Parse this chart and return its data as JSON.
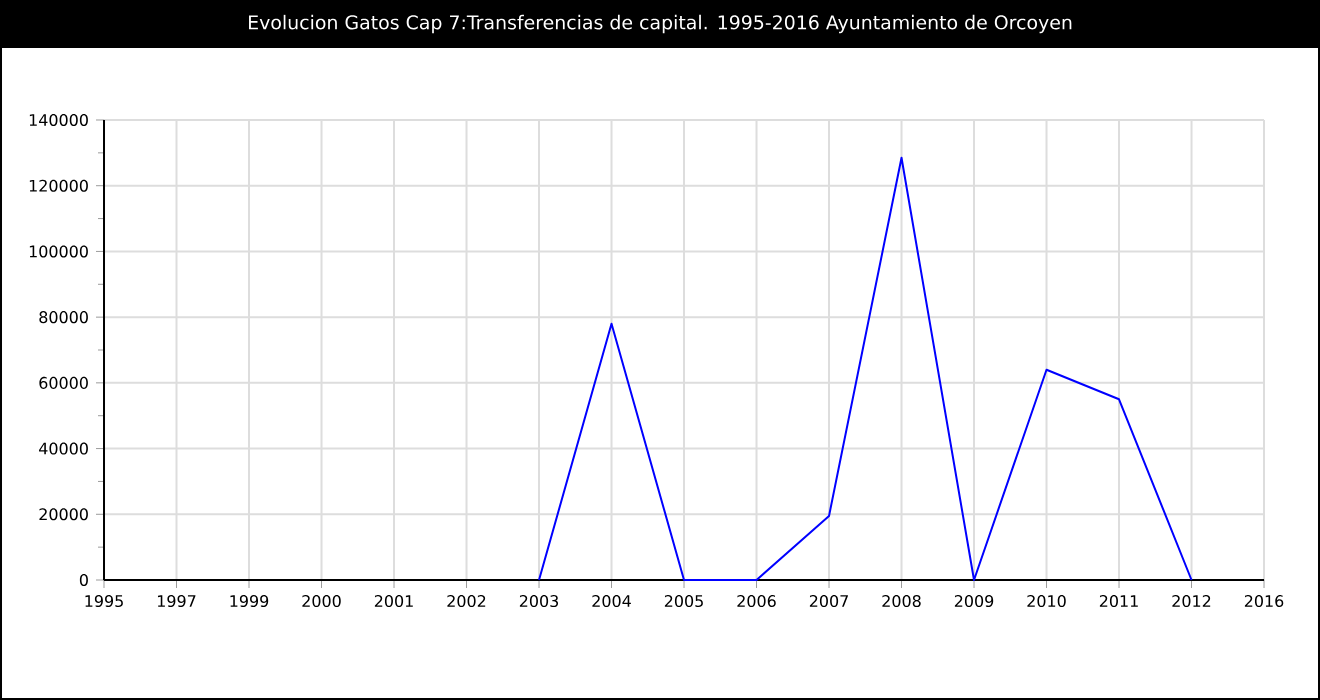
{
  "chart_data": {
    "type": "line",
    "title": "Evolucion Gatos Cap 7:Transferencias de capital. 1995-2016 Ayuntamiento de Orcoyen",
    "categories": [
      "1995",
      "1997",
      "1999",
      "2000",
      "2001",
      "2002",
      "2003",
      "2004",
      "2005",
      "2006",
      "2007",
      "2008",
      "2009",
      "2010",
      "2011",
      "2012",
      "2016"
    ],
    "series": [
      {
        "color": "#0000ff",
        "values": [
          null,
          null,
          null,
          null,
          null,
          null,
          0,
          78000,
          0,
          0,
          19500,
          128500,
          0,
          64000,
          55000,
          0,
          null
        ]
      }
    ],
    "ylim": [
      0,
      140000
    ],
    "yticks": [
      0,
      20000,
      40000,
      60000,
      80000,
      100000,
      120000,
      140000
    ],
    "grid": true,
    "marker": "none",
    "line_style": "solid"
  }
}
